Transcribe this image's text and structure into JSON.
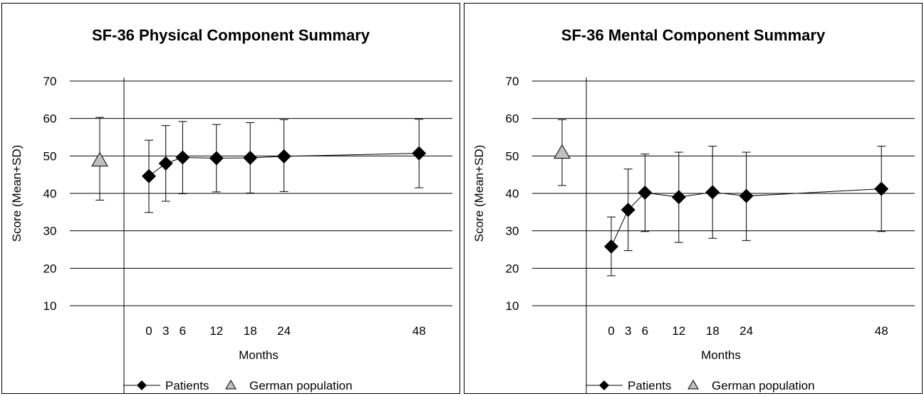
{
  "charts": [
    {
      "type": "scatter",
      "title": "SF-36 Physical Component Summary",
      "xlabel": "Months",
      "ylabel": "Score (Mean+SD)",
      "ylim": [
        10,
        70
      ],
      "yticks": [
        10,
        20,
        30,
        40,
        50,
        60,
        70
      ],
      "xticks": [
        0,
        3,
        6,
        12,
        18,
        24,
        48
      ],
      "grid": "horizontal",
      "legend_position": "bottom",
      "legend": [
        "Patients",
        "German population"
      ],
      "patients": {
        "name": "Patients",
        "color": "#000000",
        "x": [
          0,
          3,
          6,
          12,
          18,
          24,
          48
        ],
        "mean": [
          44.6,
          48.0,
          49.6,
          49.4,
          49.5,
          49.9,
          50.7
        ],
        "upper": [
          54.2,
          58.1,
          59.2,
          58.4,
          58.9,
          59.7,
          59.8
        ],
        "lower": [
          34.9,
          37.9,
          39.9,
          40.4,
          40.1,
          40.5,
          41.5
        ]
      },
      "population": {
        "name": "German population",
        "color": "#c0c0c0",
        "mean": 48.8,
        "upper": 60.3,
        "lower": 38.2
      }
    },
    {
      "type": "scatter",
      "title": "SF-36 Mental Component Summary",
      "xlabel": "Months",
      "ylabel": "Score (Mean+SD)",
      "ylim": [
        10,
        70
      ],
      "yticks": [
        10,
        20,
        30,
        40,
        50,
        60,
        70
      ],
      "xticks": [
        0,
        3,
        6,
        12,
        18,
        24,
        48
      ],
      "grid": "horizontal",
      "legend_position": "bottom",
      "legend": [
        "Patients",
        "German population"
      ],
      "patients": {
        "name": "Patients",
        "color": "#000000",
        "x": [
          0,
          3,
          6,
          12,
          18,
          24,
          48
        ],
        "mean": [
          25.8,
          35.6,
          40.2,
          39.0,
          40.3,
          39.3,
          41.2
        ],
        "upper": [
          33.7,
          46.5,
          50.5,
          51.0,
          52.6,
          51.0,
          52.6
        ],
        "lower": [
          18.0,
          24.7,
          29.8,
          26.9,
          28.0,
          27.4,
          29.8
        ]
      },
      "population": {
        "name": "German population",
        "color": "#c0c0c0",
        "mean": 50.9,
        "upper": 59.7,
        "lower": 42.1
      }
    }
  ]
}
